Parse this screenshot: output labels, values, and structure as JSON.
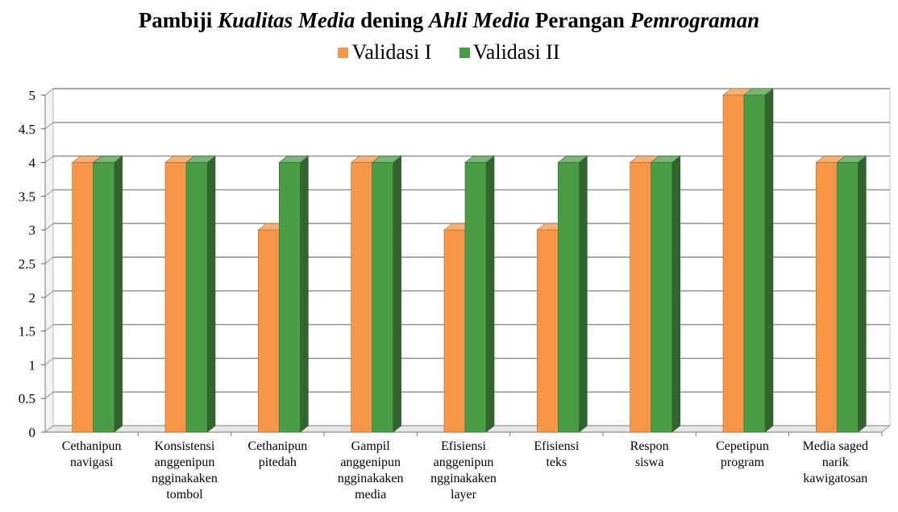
{
  "chart_data": {
    "type": "bar",
    "title_parts": [
      {
        "text": "Pambiji ",
        "italic": false
      },
      {
        "text": "Kualitas Media",
        "italic": true
      },
      {
        "text": " dening ",
        "italic": false
      },
      {
        "text": "Ahli Media",
        "italic": true
      },
      {
        "text": " Perangan ",
        "italic": false
      },
      {
        "text": "Pemrograman",
        "italic": true
      }
    ],
    "categories": [
      "Cethanipun navigasi",
      "Konsistensi anggenipun ngginakaken tombol",
      "Cethanipun pitedah",
      "Gampil anggenipun ngginakaken media",
      "Efisiensi anggenipun ngginakaken layer",
      "Efisiensi teks",
      "Respon siswa",
      "Cepetipun program",
      "Media saged narik kawigatosan"
    ],
    "category_label_lines": [
      [
        "Cethanipun",
        "navigasi"
      ],
      [
        "Konsistensi",
        "anggenipun",
        "ngginakaken",
        "tombol"
      ],
      [
        "Cethanipun",
        "pitedah"
      ],
      [
        "Gampil",
        "anggenipun",
        "ngginakaken",
        "media"
      ],
      [
        "Efisiensi",
        "anggenipun",
        "ngginakaken",
        "layer"
      ],
      [
        "Efisiensi",
        "teks"
      ],
      [
        "Respon",
        "siswa"
      ],
      [
        "Cepetipun",
        "program"
      ],
      [
        "Media saged",
        "narik",
        "kawigatosan"
      ]
    ],
    "series": [
      {
        "name": "Validasi I",
        "color": "#F79646",
        "values": [
          4,
          4,
          3,
          4,
          3,
          3,
          4,
          5,
          4
        ]
      },
      {
        "name": "Validasi II",
        "color": "#4A9D45",
        "values": [
          4,
          4,
          4,
          4,
          4,
          4,
          4,
          5,
          4
        ]
      }
    ],
    "ylim": [
      0,
      5
    ],
    "yticks": [
      "0",
      "0.5",
      "1",
      "1.5",
      "2",
      "2.5",
      "3",
      "3.5",
      "4",
      "4.5",
      "5"
    ],
    "grid": true,
    "legend_position": "top-center",
    "style": "3d-column"
  }
}
